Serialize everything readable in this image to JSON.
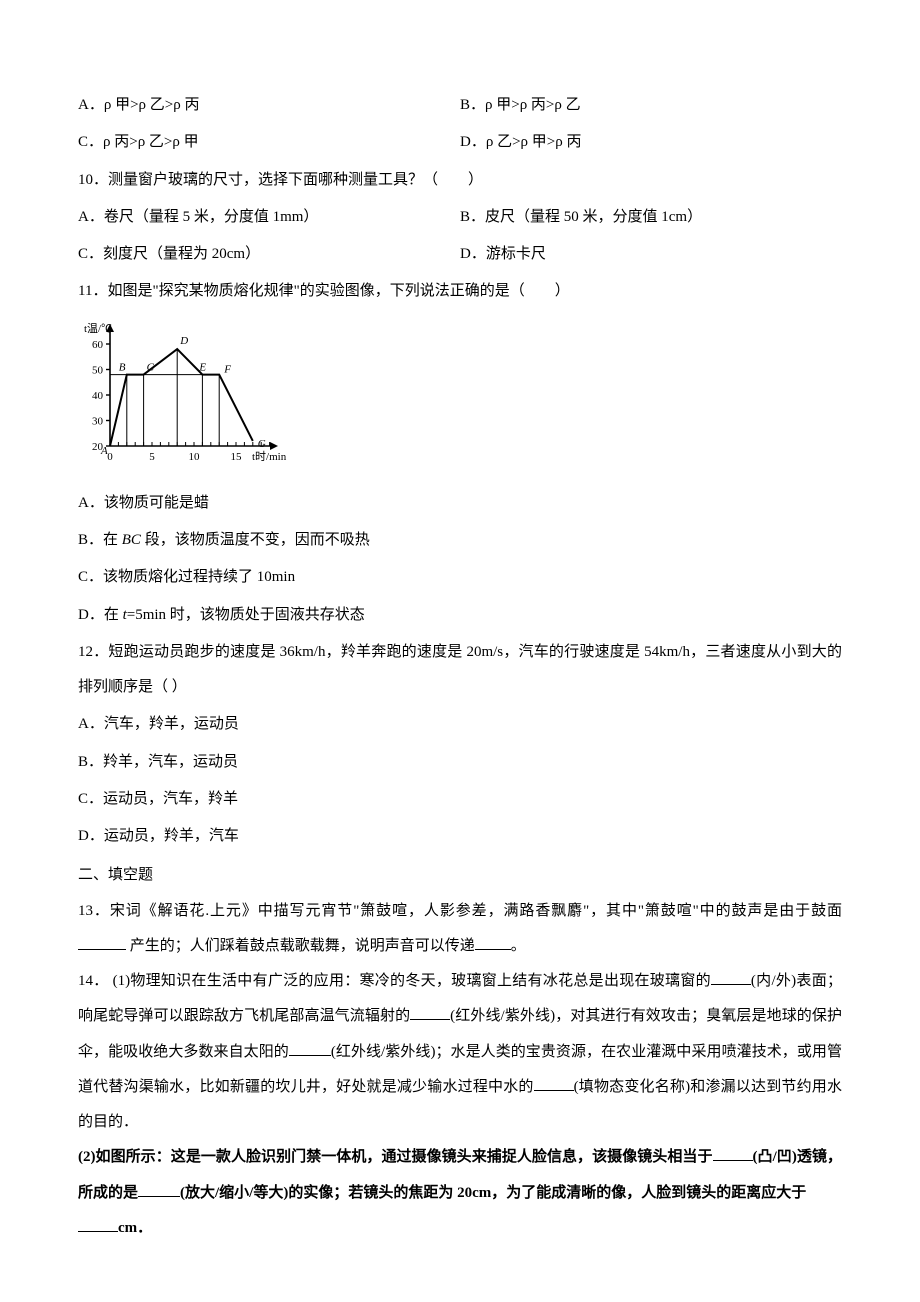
{
  "q_ab": {
    "A": "A．ρ 甲>ρ 乙>ρ 丙",
    "B": "B．ρ 甲>ρ 丙>ρ 乙",
    "C": "C．ρ 丙>ρ 乙>ρ 甲",
    "D": "D．ρ 乙>ρ 甲>ρ 丙"
  },
  "q10": {
    "stem": "10．测量窗户玻璃的尺寸，选择下面哪种测量工具？（　　）",
    "A": "A．卷尺（量程 5 米，分度值 1mm）",
    "B": "B．皮尺（量程 50 米，分度值 1cm）",
    "C": "C．刻度尺（量程为 20cm）",
    "D": "D．游标卡尺"
  },
  "q11": {
    "stem": "11．如图是\"探究某物质熔化规律\"的实验图像，下列说法正确的是（　　）",
    "A": "A．该物质可能是蜡",
    "B_pre": "B．在 ",
    "B_mid": "BC",
    "B_post": " 段，该物质温度不变，因而不吸热",
    "C": "C．该物质熔化过程持续了 10min",
    "D_pre": "D．在 ",
    "D_mid": "t",
    "D_post": "=5min 时，该物质处于固液共存状态",
    "graph": {
      "y_label": "t温/℃",
      "x_label": "t时/min",
      "y_ticks": [
        20,
        30,
        40,
        50,
        60
      ],
      "x_ticks": [
        0,
        5,
        10,
        15
      ],
      "points": {
        "A": [
          0,
          20
        ],
        "B": [
          2,
          48
        ],
        "C": [
          4,
          48
        ],
        "D": [
          8,
          58
        ],
        "E": [
          11,
          48
        ],
        "F": [
          13,
          48
        ],
        "G": [
          17,
          22
        ]
      },
      "axis_color": "#000000",
      "line_color": "#000000",
      "tick_color": "#000000",
      "font_size": 11
    }
  },
  "q12": {
    "stem": "12．短跑运动员跑步的速度是 36km/h，羚羊奔跑的速度是 20m/s，汽车的行驶速度是 54km/h，三者速度从小到大的排列顺序是（   ）",
    "A": "A．汽车，羚羊，运动员",
    "B": "B．羚羊，汽车，运动员",
    "C": "C．运动员，汽车，羚羊",
    "D": "D．运动员，羚羊，汽车"
  },
  "section2": "二、填空题",
  "q13": {
    "t1": "13．宋词《解语花.上元》中描写元宵节\"箫鼓喧，人影参差，满路香飘麝\"，其中\"箫鼓喧\"中的鼓声是由于鼓面",
    "t2": "产生的；人们踩着鼓点载歌载舞，说明声音可以传递",
    "t3": "。"
  },
  "q14": {
    "t1": "14．  (1)物理知识在生活中有广泛的应用：寒冷的冬天，玻璃窗上结有冰花总是出现在玻璃窗的",
    "t2": "(内/外)表面；响尾蛇导弹可以跟踪敌方飞机尾部高温气流辐射的",
    "t3": "(红外线/紫外线)，对其进行有效攻击；臭氧层是地球的保护伞，能吸收绝大多数来自太阳的",
    "t4": "(红外线/紫外线)；水是人类的宝贵资源，在农业灌溉中采用喷灌技术，或用管道代替沟渠输水，比如新疆的坎儿井，好处就是减少输水过程中水的",
    "t5": "(填物态变化名称)和渗漏以达到节约用水的目的．",
    "t6": "(2)如图所示：这是一款人脸识别门禁一体机，通过摄像镜头来捕捉人脸信息，该摄像镜头相当于",
    "t7": "(凸/凹)透镜，所成的是",
    "t8": "(放大/缩小/等大)的实像；若镜头的焦距为 20cm，为了能成清晰的像，人脸到镜头的距离应大于",
    "t9": "cm．"
  }
}
